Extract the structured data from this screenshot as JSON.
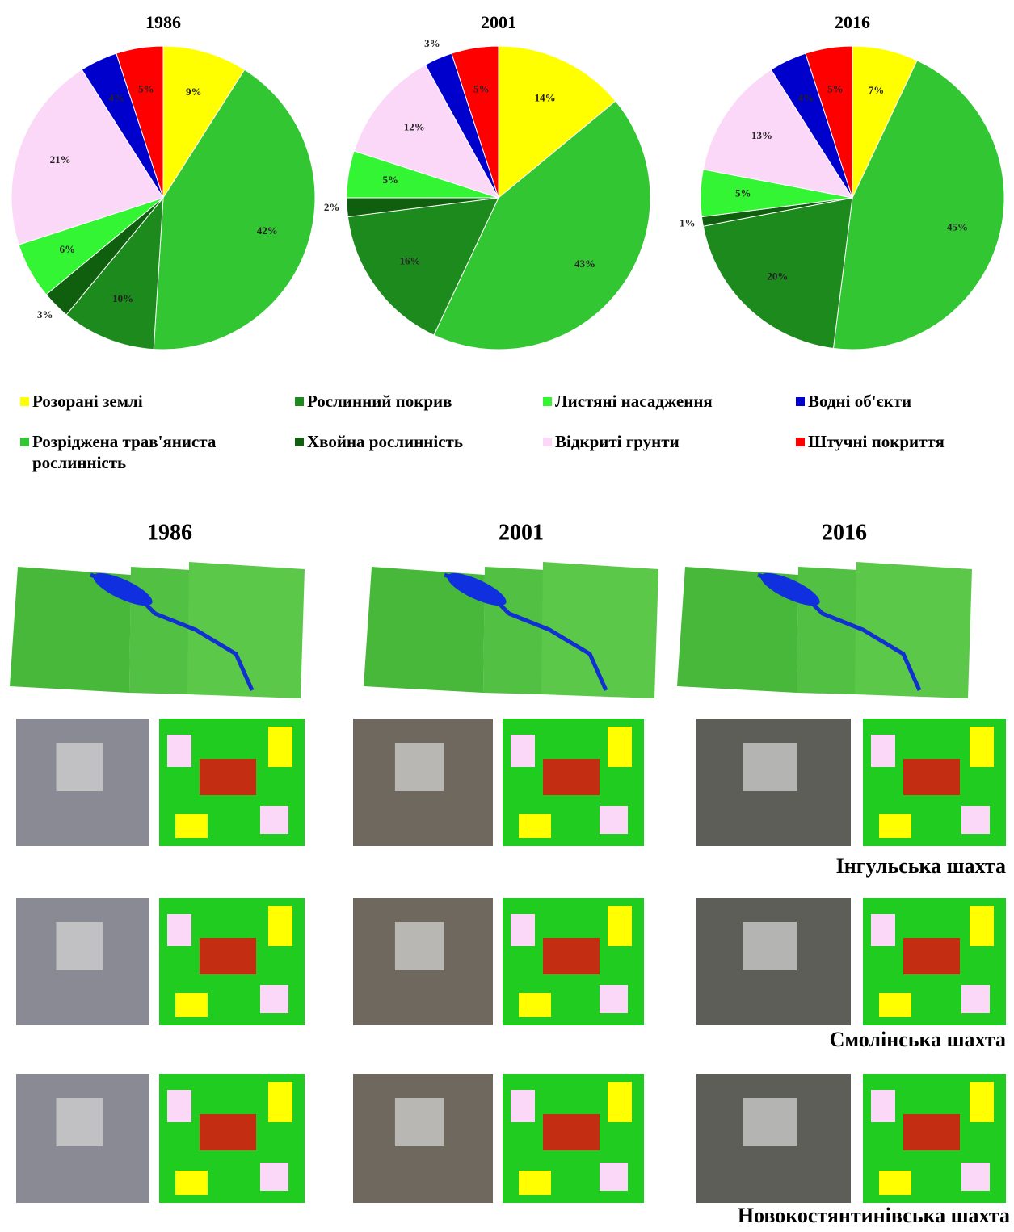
{
  "chart_data": [
    {
      "type": "pie",
      "title": "1986",
      "values": [
        9,
        42,
        10,
        3,
        6,
        21,
        4,
        5
      ],
      "value_labels": [
        "9%",
        "42%",
        "10%",
        "3%",
        "6%",
        "21%",
        "4%",
        "5%"
      ]
    },
    {
      "type": "pie",
      "title": "2001",
      "values": [
        14,
        43,
        16,
        2,
        5,
        12,
        3,
        5
      ],
      "value_labels": [
        "14%",
        "43%",
        "16%",
        "2%",
        "5%",
        "12%",
        "3%",
        "5%"
      ]
    },
    {
      "type": "pie",
      "title": "2016",
      "values": [
        7,
        45,
        20,
        1,
        5,
        13,
        4,
        5
      ],
      "value_labels": [
        "7%",
        "45%",
        "20%",
        "1%",
        "5%",
        "13%",
        "4%",
        "5%"
      ]
    }
  ],
  "legend": [
    {
      "name": "Розорані землі",
      "color": "#ffff00"
    },
    {
      "name": "Розріджена трав'яниста рослинність",
      "color": "#33c633"
    },
    {
      "name": "Рослинний покрив",
      "color": "#1d8a1d"
    },
    {
      "name": "Хвойна рослинність",
      "color": "#0f5f0f"
    },
    {
      "name": "Листяні насадження",
      "color": "#33f533"
    },
    {
      "name": "Відкриті грунти",
      "color": "#fcd8f8"
    },
    {
      "name": "Водні об'єкти",
      "color": "#0000cc"
    },
    {
      "name": "Штучні покриття",
      "color": "#ff0000"
    }
  ],
  "images": {
    "years": [
      "1986",
      "2001",
      "2016"
    ],
    "sites": [
      "Інгульська шахта",
      "Смолінська шахта",
      "Новокостянтинівська шахта"
    ]
  }
}
